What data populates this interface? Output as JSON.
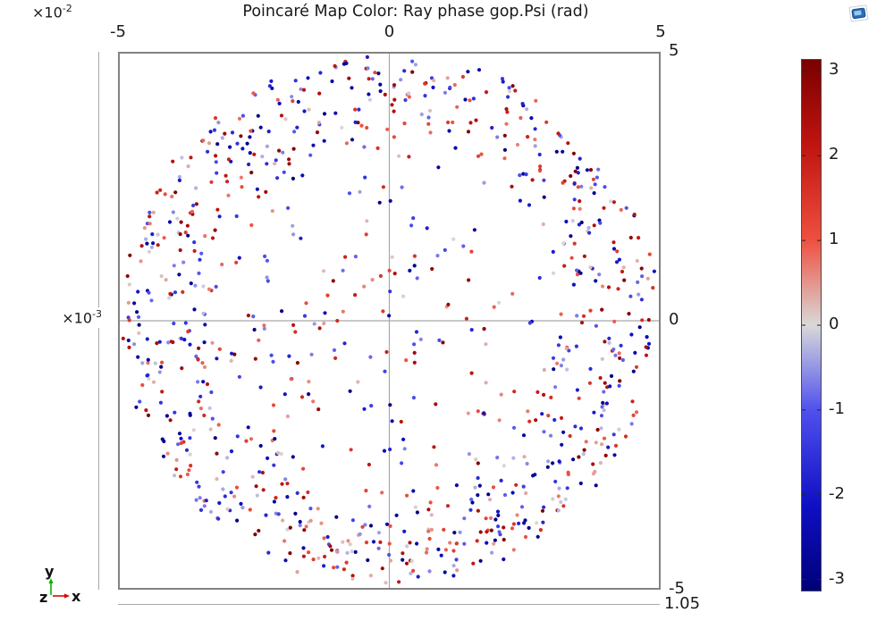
{
  "title": "Poincaré Map Color: Ray phase gop.Psi (rad)",
  "x_axis": {
    "multiplier_base": "×10",
    "multiplier_exp": "-2",
    "tick_labels": [
      "-5",
      "0",
      "5"
    ],
    "tick_values": [
      -5,
      0,
      5
    ],
    "range": [
      -5,
      5
    ]
  },
  "y_axis": {
    "multiplier_base": "×10",
    "multiplier_exp": "-3",
    "tick_labels": [
      "5",
      "0",
      "-5"
    ],
    "tick_values": [
      5,
      0,
      -5
    ],
    "range": [
      -5,
      5
    ]
  },
  "bottom_ruler": {
    "label": "1.05"
  },
  "triad": {
    "x_label": "x",
    "y_label": "y",
    "z_label": "z",
    "x_arrow_color": "#e00000",
    "y_arrow_color": "#00b400",
    "text_color": "#111111"
  },
  "colorbar": {
    "tick_labels": [
      "3",
      "2",
      "1",
      "0",
      "-1",
      "-2",
      "-3"
    ],
    "tick_values": [
      3,
      2,
      1,
      0,
      -1,
      -2,
      -3
    ],
    "range": [
      -3.14159,
      3.14159
    ]
  },
  "colormap_stops": [
    {
      "t": 0.0,
      "color": "#00007a"
    },
    {
      "t": 0.16,
      "color": "#0f0fc4"
    },
    {
      "t": 0.34,
      "color": "#5050ee"
    },
    {
      "t": 0.5,
      "color": "#d9d9d9"
    },
    {
      "t": 0.66,
      "color": "#ee5040"
    },
    {
      "t": 0.84,
      "color": "#c01410"
    },
    {
      "t": 1.0,
      "color": "#7a0000"
    }
  ],
  "chart_data": {
    "type": "scatter",
    "title": "Poincaré Map Color: Ray phase gop.Psi (rad)",
    "xlim": [
      -0.05,
      0.05
    ],
    "ylim": [
      -0.005,
      0.005
    ],
    "x_tick_labels": [
      "-5",
      "0",
      "5"
    ],
    "x_multiplier": "×10⁻²",
    "y_tick_labels": [
      "5",
      "0",
      "-5"
    ],
    "y_multiplier": "×10⁻³",
    "grid": "center-cross",
    "legend": "colorbar-right",
    "color_quantity": "Ray phase gop.Psi (rad)",
    "color_range": [
      -3.14159,
      3.14159
    ],
    "colorbar_ticks": [
      3,
      2,
      1,
      0,
      -1,
      -2,
      -3
    ],
    "plane_position_label": "1.05",
    "n_points": 1000,
    "distribution": {
      "shape": "annulus-with-sparse-interior",
      "ring_fraction": 0.87,
      "ring_inner_r": 0.57,
      "ring_outer_r": 1.0,
      "ring_radial_power": 0.55,
      "interior_max_r": 0.56,
      "color_values": "uniform(-pi, pi)",
      "seed": 1337
    },
    "point_radius_px": 2.1
  },
  "plot_colors": {
    "box_border": "#828282",
    "axis_cross": "#a8a8a8",
    "ruler": "#a8a8a8"
  }
}
